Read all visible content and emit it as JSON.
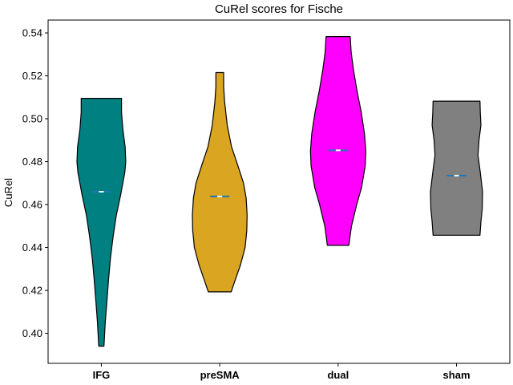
{
  "chart_data": {
    "type": "violin",
    "title": "CuRel scores for Fische",
    "ylabel": "CuRel",
    "xlabel": "",
    "ylim": [
      0.386,
      0.546
    ],
    "yticks": [
      0.4,
      0.42,
      0.44,
      0.46,
      0.48,
      0.5,
      0.52,
      0.54
    ],
    "ytick_labels": [
      "0.40",
      "0.42",
      "0.44",
      "0.46",
      "0.48",
      "0.50",
      "0.52",
      "0.54"
    ],
    "grid": false,
    "median_color": "#1f77b4",
    "categories": [
      "IFG",
      "preSMA",
      "dual",
      "sham"
    ],
    "series": [
      {
        "category": "IFG",
        "color": "#008080",
        "min": 0.394,
        "max": 0.5095,
        "median": 0.466,
        "mean": 0.466,
        "profile": [
          [
            0.394,
            0.08
          ],
          [
            0.405,
            0.12
          ],
          [
            0.415,
            0.17
          ],
          [
            0.425,
            0.22
          ],
          [
            0.435,
            0.28
          ],
          [
            0.445,
            0.36
          ],
          [
            0.455,
            0.46
          ],
          [
            0.465,
            0.6
          ],
          [
            0.475,
            0.72
          ],
          [
            0.48,
            0.75
          ],
          [
            0.487,
            0.73
          ],
          [
            0.495,
            0.66
          ],
          [
            0.503,
            0.62
          ],
          [
            0.5095,
            0.62
          ]
        ]
      },
      {
        "category": "preSMA",
        "color": "#daa520",
        "min": 0.4193,
        "max": 0.5215,
        "median": 0.4638,
        "mean": 0.4638,
        "profile": [
          [
            0.4193,
            0.35
          ],
          [
            0.425,
            0.48
          ],
          [
            0.432,
            0.64
          ],
          [
            0.44,
            0.78
          ],
          [
            0.448,
            0.83
          ],
          [
            0.455,
            0.84
          ],
          [
            0.463,
            0.81
          ],
          [
            0.47,
            0.73
          ],
          [
            0.478,
            0.56
          ],
          [
            0.487,
            0.36
          ],
          [
            0.497,
            0.23
          ],
          [
            0.508,
            0.15
          ],
          [
            0.515,
            0.12
          ],
          [
            0.5215,
            0.12
          ]
        ]
      },
      {
        "category": "dual",
        "color": "#ff00ff",
        "min": 0.441,
        "max": 0.5383,
        "median": 0.4853,
        "mean": 0.4853,
        "profile": [
          [
            0.441,
            0.33
          ],
          [
            0.45,
            0.41
          ],
          [
            0.46,
            0.57
          ],
          [
            0.468,
            0.72
          ],
          [
            0.478,
            0.83
          ],
          [
            0.485,
            0.85
          ],
          [
            0.493,
            0.81
          ],
          [
            0.503,
            0.71
          ],
          [
            0.513,
            0.58
          ],
          [
            0.523,
            0.47
          ],
          [
            0.531,
            0.4
          ],
          [
            0.5383,
            0.37
          ]
        ]
      },
      {
        "category": "sham",
        "color": "#808080",
        "min": 0.4457,
        "max": 0.5082,
        "median": 0.4735,
        "mean": 0.4735,
        "profile": [
          [
            0.4457,
            0.72
          ],
          [
            0.452,
            0.75
          ],
          [
            0.458,
            0.79
          ],
          [
            0.466,
            0.8
          ],
          [
            0.475,
            0.73
          ],
          [
            0.483,
            0.66
          ],
          [
            0.49,
            0.69
          ],
          [
            0.497,
            0.75
          ],
          [
            0.503,
            0.73
          ],
          [
            0.5082,
            0.72
          ]
        ]
      }
    ]
  }
}
